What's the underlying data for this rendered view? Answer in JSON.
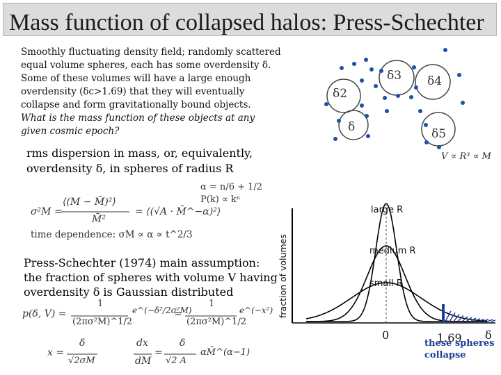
{
  "slide": {
    "title": "Mass function of collapsed halos: Press-Schechter",
    "intro_lines": [
      "Smoothly fluctuating density field; randomly scattered",
      "equal volume spheres, each has some overdensity δ.",
      "Some of these volumes will have a large enough",
      "overdensity (δc>1.69) that they will eventually",
      "collapse and form gravitationally bound objects."
    ],
    "intro_question_lines": [
      "What is the mass function of these objects at any",
      "given cosmic epoch?"
    ],
    "rms_lines": [
      "rms dispersion in mass, or, equivalently,",
      "overdensity δ,  in spheres of radius R"
    ],
    "ps_lines": [
      "Press-Schechter (1974) main assumption:",
      "the fraction of spheres with volume V  having",
      "overdensity δ is Gaussian distributed"
    ]
  },
  "equations": {
    "alpha": "α = n/6 + 1/2",
    "power_spectrum": "P(k) ∝ kⁿ",
    "volume_mass": "V ∝ R³ ∝ M",
    "sigma_def_lhs": "σ²M =",
    "sigma_def_num": "⟨(M − M̄)²⟩",
    "sigma_def_den": "M̄²",
    "sigma_def_eq": "= ⟨(√A · M̄^−α)²⟩",
    "time_dep": "time dependence:  σM ∝ α ∝ t^2/3",
    "gaussian_lhs": "p(δ, V) =",
    "gaussian_frac1_num": "1",
    "gaussian_frac1_den": "(2πσ²M)^1/2",
    "gaussian_exp": "e^(−δ²/2σ²M)",
    "gaussian_mid": "=",
    "gaussian_frac2_num": "1",
    "gaussian_frac2_den": "(2πσ²M)^1/2",
    "gaussian_exp2": "e^(−x²)",
    "x_lhs": "x =",
    "x_num": "δ",
    "x_den": "√2σM",
    "dx_num": "dx",
    "dx_den": "dM",
    "dx_eq": "=",
    "dx_rhs_num": "δ",
    "dx_rhs_den": "√2 A",
    "dx_rhs_tail": "αM̄^(α−1)"
  },
  "diagram": {
    "sphere_labels": [
      "δ3",
      "δ4",
      "δ2",
      "δ",
      "δ5"
    ],
    "dot_color": "#1f4fa8",
    "circle_color": "#444444"
  },
  "plot": {
    "ylabel": "fraction of volumes",
    "curve_labels": [
      "large R",
      "medium R",
      "small R"
    ],
    "x_zero_label": "0",
    "x_threshold_label": "1.69",
    "x_delta_label": "δ",
    "collapse_label_line1": "these spheres",
    "collapse_label_line2": "collapse",
    "collapse_color": "#1f3f99"
  }
}
